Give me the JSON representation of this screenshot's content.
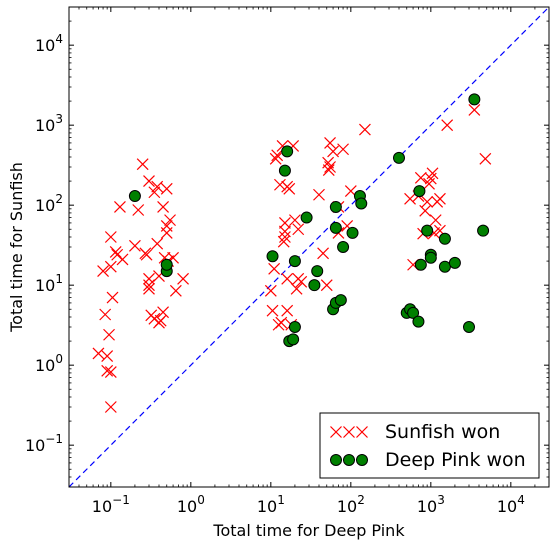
{
  "chart_data": {
    "type": "scatter",
    "xlabel": "Total time for Deep Pink",
    "ylabel": "Total time for Sunfish",
    "xscale": "log",
    "yscale": "log",
    "xlim": [
      0.03,
      30000
    ],
    "ylim": [
      0.03,
      30000
    ],
    "x_ticks": [
      {
        "value": 0.1,
        "base": "10",
        "exp": "−1"
      },
      {
        "value": 1,
        "base": "10",
        "exp": "0"
      },
      {
        "value": 10,
        "base": "10",
        "exp": "1"
      },
      {
        "value": 100,
        "base": "10",
        "exp": "2"
      },
      {
        "value": 1000,
        "base": "10",
        "exp": "3"
      },
      {
        "value": 10000,
        "base": "10",
        "exp": "4"
      }
    ],
    "y_ticks": [
      {
        "value": 0.1,
        "base": "10",
        "exp": "−1"
      },
      {
        "value": 1,
        "base": "10",
        "exp": "0"
      },
      {
        "value": 10,
        "base": "10",
        "exp": "1"
      },
      {
        "value": 100,
        "base": "10",
        "exp": "2"
      },
      {
        "value": 1000,
        "base": "10",
        "exp": "3"
      },
      {
        "value": 10000,
        "base": "10",
        "exp": "4"
      }
    ],
    "reference_line": {
      "style": "dashed",
      "color": "#0000ff",
      "relation": "y = x"
    },
    "legend_position": "lower-right",
    "grid": false,
    "series": [
      {
        "name": "Sunfish won",
        "marker": "x",
        "color": "#ff0000",
        "points": [
          [
            0.07,
            1.4
          ],
          [
            0.08,
            15
          ],
          [
            0.085,
            4.3
          ],
          [
            0.09,
            1.3
          ],
          [
            0.09,
            0.85
          ],
          [
            0.095,
            2.4
          ],
          [
            0.1,
            0.82
          ],
          [
            0.1,
            0.3
          ],
          [
            0.1,
            40
          ],
          [
            0.1,
            17
          ],
          [
            0.105,
            7
          ],
          [
            0.115,
            26
          ],
          [
            0.12,
            24
          ],
          [
            0.13,
            95
          ],
          [
            0.14,
            21
          ],
          [
            0.2,
            31
          ],
          [
            0.22,
            87
          ],
          [
            0.25,
            325
          ],
          [
            0.27,
            25
          ],
          [
            0.28,
            24
          ],
          [
            0.3,
            12
          ],
          [
            0.3,
            10
          ],
          [
            0.3,
            9
          ],
          [
            0.3,
            200
          ],
          [
            0.32,
            4.2
          ],
          [
            0.35,
            3.8
          ],
          [
            0.35,
            145
          ],
          [
            0.38,
            170
          ],
          [
            0.38,
            33
          ],
          [
            0.4,
            13
          ],
          [
            0.4,
            3.4
          ],
          [
            0.42,
            3.6
          ],
          [
            0.45,
            95
          ],
          [
            0.45,
            4.6
          ],
          [
            0.47,
            22
          ],
          [
            0.5,
            160
          ],
          [
            0.5,
            55
          ],
          [
            0.5,
            45
          ],
          [
            0.52,
            20
          ],
          [
            0.55,
            65
          ],
          [
            0.6,
            22
          ],
          [
            0.65,
            8.5
          ],
          [
            0.8,
            12
          ],
          [
            10,
            8.5
          ],
          [
            10.5,
            4.8
          ],
          [
            11,
            16
          ],
          [
            11.5,
            380
          ],
          [
            12,
            420
          ],
          [
            12.5,
            3.2
          ],
          [
            13,
            180
          ],
          [
            13.5,
            3.4
          ],
          [
            14,
            550
          ],
          [
            14.5,
            35
          ],
          [
            15,
            47
          ],
          [
            15,
            60
          ],
          [
            15,
            40
          ],
          [
            16,
            12
          ],
          [
            16,
            170
          ],
          [
            16,
            4.8
          ],
          [
            17,
            160
          ],
          [
            18,
            3.2
          ],
          [
            19,
            550
          ],
          [
            20,
            65
          ],
          [
            21,
            9
          ],
          [
            22,
            12
          ],
          [
            22,
            50
          ],
          [
            24,
            11
          ],
          [
            40,
            135
          ],
          [
            45,
            25
          ],
          [
            50,
            10
          ],
          [
            52,
            340
          ],
          [
            53,
            275
          ],
          [
            55,
            300
          ],
          [
            55,
            600
          ],
          [
            60,
            470
          ],
          [
            70,
            95
          ],
          [
            70,
            45
          ],
          [
            80,
            500
          ],
          [
            90,
            55
          ],
          [
            100,
            150
          ],
          [
            150,
            880
          ],
          [
            550,
            120
          ],
          [
            600,
            18
          ],
          [
            700,
            130
          ],
          [
            750,
            220
          ],
          [
            800,
            44
          ],
          [
            850,
            85
          ],
          [
            900,
            110
          ],
          [
            950,
            185
          ],
          [
            1000,
            215
          ],
          [
            1050,
            250
          ],
          [
            1100,
            45
          ],
          [
            1150,
            65
          ],
          [
            1200,
            110
          ],
          [
            1300,
            120
          ],
          [
            1300,
            48
          ],
          [
            1600,
            1000
          ],
          [
            3500,
            1550
          ],
          [
            4800,
            380
          ]
        ]
      },
      {
        "name": "Deep Pink won",
        "marker": "o",
        "color": "#008000",
        "points": [
          [
            0.2,
            130
          ],
          [
            0.5,
            15
          ],
          [
            0.5,
            18
          ],
          [
            10.5,
            23
          ],
          [
            15,
            270
          ],
          [
            16,
            470
          ],
          [
            17,
            2
          ],
          [
            19,
            2.1
          ],
          [
            20,
            3
          ],
          [
            20,
            20
          ],
          [
            28,
            70
          ],
          [
            35,
            10
          ],
          [
            38,
            15
          ],
          [
            60,
            5
          ],
          [
            65,
            6
          ],
          [
            65,
            95
          ],
          [
            65,
            52
          ],
          [
            75,
            6.5
          ],
          [
            80,
            30
          ],
          [
            105,
            45
          ],
          [
            130,
            130
          ],
          [
            135,
            105
          ],
          [
            400,
            390
          ],
          [
            500,
            4.5
          ],
          [
            550,
            5
          ],
          [
            600,
            4.5
          ],
          [
            700,
            3.5
          ],
          [
            720,
            150
          ],
          [
            750,
            18
          ],
          [
            900,
            48
          ],
          [
            1000,
            24
          ],
          [
            1000,
            22
          ],
          [
            1500,
            38
          ],
          [
            1500,
            17
          ],
          [
            2000,
            19
          ],
          [
            3000,
            3
          ],
          [
            3500,
            2100
          ],
          [
            4500,
            48
          ]
        ]
      }
    ]
  }
}
